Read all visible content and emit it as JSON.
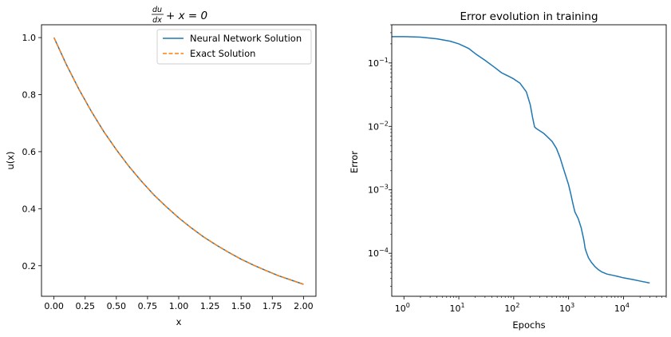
{
  "chart_data": [
    {
      "type": "line",
      "title_main": "du/dx + x = 0",
      "title_num": "du",
      "title_den": "dx",
      "title_rest": "+ x = 0",
      "xlabel": "x",
      "ylabel": "u(x)",
      "xlim": [
        -0.1,
        2.1
      ],
      "ylim": [
        0.093,
        1.045
      ],
      "xticks": [
        0.0,
        0.25,
        0.5,
        0.75,
        1.0,
        1.25,
        1.5,
        1.75,
        2.0
      ],
      "xtick_labels": [
        "0.00",
        "0.25",
        "0.50",
        "0.75",
        "1.00",
        "1.25",
        "1.50",
        "1.75",
        "2.00"
      ],
      "yticks": [
        0.2,
        0.4,
        0.6,
        0.8,
        1.0
      ],
      "ytick_labels": [
        "0.2",
        "0.4",
        "0.6",
        "0.8",
        "1.0"
      ],
      "legend_position": "top-right",
      "series": [
        {
          "name": "Neural Network Solution",
          "color": "#1f77b4",
          "style": "solid",
          "x": [
            0.0,
            0.1,
            0.2,
            0.3,
            0.4,
            0.5,
            0.6,
            0.7,
            0.8,
            0.9,
            1.0,
            1.1,
            1.2,
            1.3,
            1.4,
            1.5,
            1.6,
            1.7,
            1.8,
            1.9,
            2.0
          ],
          "y": [
            1.0,
            0.905,
            0.819,
            0.741,
            0.67,
            0.607,
            0.549,
            0.497,
            0.449,
            0.407,
            0.368,
            0.333,
            0.301,
            0.273,
            0.247,
            0.223,
            0.202,
            0.183,
            0.165,
            0.15,
            0.135
          ]
        },
        {
          "name": "Exact Solution",
          "color": "#ff7f0e",
          "style": "dashed",
          "x": [
            0.0,
            0.1,
            0.2,
            0.3,
            0.4,
            0.5,
            0.6,
            0.7,
            0.8,
            0.9,
            1.0,
            1.1,
            1.2,
            1.3,
            1.4,
            1.5,
            1.6,
            1.7,
            1.8,
            1.9,
            2.0
          ],
          "y": [
            1.0,
            0.905,
            0.819,
            0.741,
            0.67,
            0.607,
            0.549,
            0.497,
            0.449,
            0.407,
            0.368,
            0.333,
            0.301,
            0.273,
            0.247,
            0.223,
            0.202,
            0.183,
            0.165,
            0.15,
            0.135
          ]
        }
      ]
    },
    {
      "type": "line",
      "title": "Error evolution in training",
      "xlabel": "Epochs",
      "ylabel": "Error",
      "xscale": "log",
      "yscale": "log",
      "xlim": [
        0.6,
        60000
      ],
      "ylim": [
        2.1e-05,
        0.4
      ],
      "xticks": [
        1,
        10,
        100,
        1000,
        10000
      ],
      "xtick_labels": [
        {
          "base": "10",
          "exp": "0"
        },
        {
          "base": "10",
          "exp": "1"
        },
        {
          "base": "10",
          "exp": "2"
        },
        {
          "base": "10",
          "exp": "3"
        },
        {
          "base": "10",
          "exp": "4"
        }
      ],
      "yticks": [
        0.1,
        0.01,
        0.001,
        0.0001
      ],
      "ytick_labels": [
        {
          "base": "10",
          "exp": "−1"
        },
        {
          "base": "10",
          "exp": "−2"
        },
        {
          "base": "10",
          "exp": "−3"
        },
        {
          "base": "10",
          "exp": "−4"
        }
      ],
      "series": [
        {
          "name": "Error",
          "color": "#1f77b4",
          "x": [
            0.6,
            1,
            2,
            4,
            7,
            10,
            15,
            20,
            30,
            45,
            60,
            80,
            100,
            130,
            170,
            200,
            220,
            240,
            260,
            300,
            350,
            400,
            500,
            600,
            700,
            800,
            900,
            1000,
            1100,
            1200,
            1300,
            1500,
            1700,
            1900,
            2000,
            2100,
            2300,
            2600,
            3000,
            3500,
            4000,
            5000,
            6000,
            8000,
            10000,
            15000,
            20000,
            30000
          ],
          "y": [
            0.26,
            0.26,
            0.255,
            0.24,
            0.22,
            0.2,
            0.17,
            0.14,
            0.11,
            0.085,
            0.07,
            0.062,
            0.056,
            0.048,
            0.035,
            0.022,
            0.014,
            0.0098,
            0.0092,
            0.0085,
            0.0078,
            0.007,
            0.0058,
            0.0045,
            0.0032,
            0.0022,
            0.0016,
            0.0012,
            0.00085,
            0.0006,
            0.00045,
            0.00035,
            0.00025,
            0.00016,
            0.00012,
            0.000105,
            8.5e-05,
            7.2e-05,
            6.2e-05,
            5.5e-05,
            5.1e-05,
            4.7e-05,
            4.55e-05,
            4.3e-05,
            4.1e-05,
            3.85e-05,
            3.65e-05,
            3.4e-05
          ]
        }
      ]
    }
  ]
}
